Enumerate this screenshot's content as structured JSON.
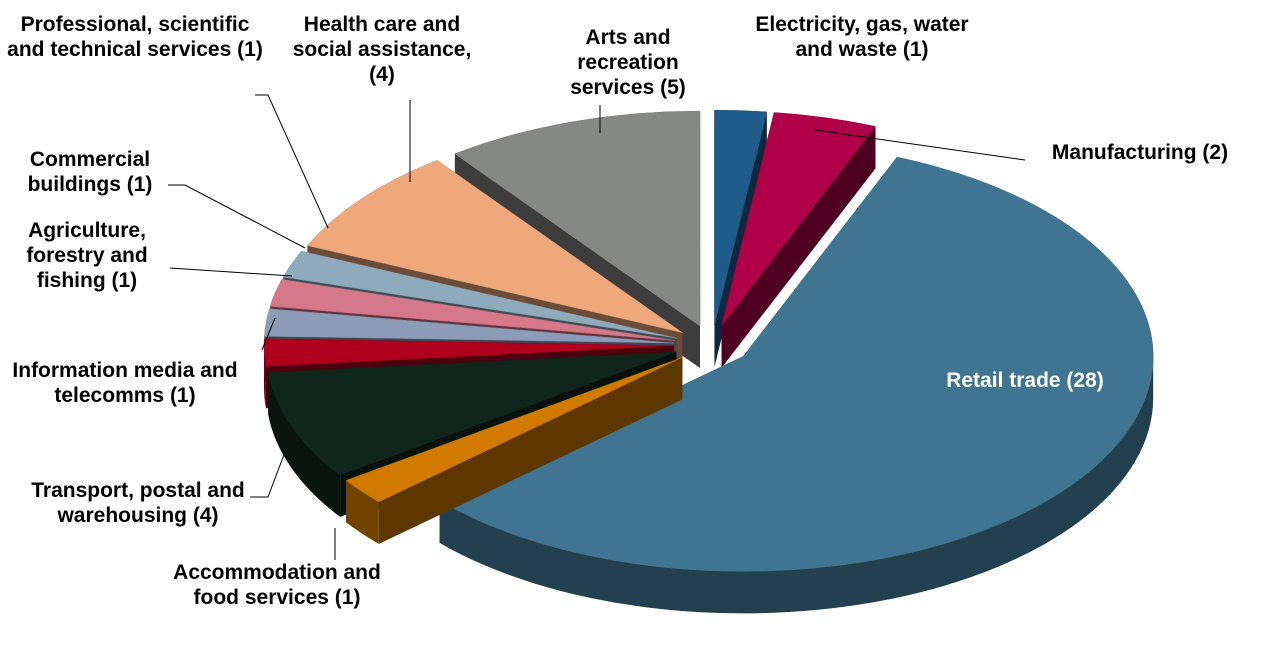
{
  "chart_data": {
    "type": "pie3d",
    "categories": [
      "Electricity, gas, water and waste",
      "Manufacturing",
      "Retail trade",
      "Accommodation and food services",
      "Transport, postal and warehousing",
      "Information media and telecomms",
      "Agriculture, forestry and fishing",
      "Commercial buildings",
      "Professional, scientific and technical services",
      "Health care and social assistance,",
      "Arts and recreation services"
    ],
    "values": [
      1,
      2,
      28,
      1,
      4,
      1,
      1,
      1,
      1,
      4,
      5
    ],
    "value_labels": [
      "(1)",
      "(2)",
      "(28)",
      "(1)",
      "(4)",
      "(1)",
      "(1)",
      "(1)",
      "(1)",
      "(4)",
      "(5)"
    ],
    "colors": [
      "#1f5c8b",
      "#b0004a",
      "#3f7590",
      "#d07a00",
      "#10261c",
      "#b0001e",
      "#8c9cb8",
      "#d4788a",
      "#8eaabb",
      "#eea87c",
      "#868886"
    ]
  }
}
